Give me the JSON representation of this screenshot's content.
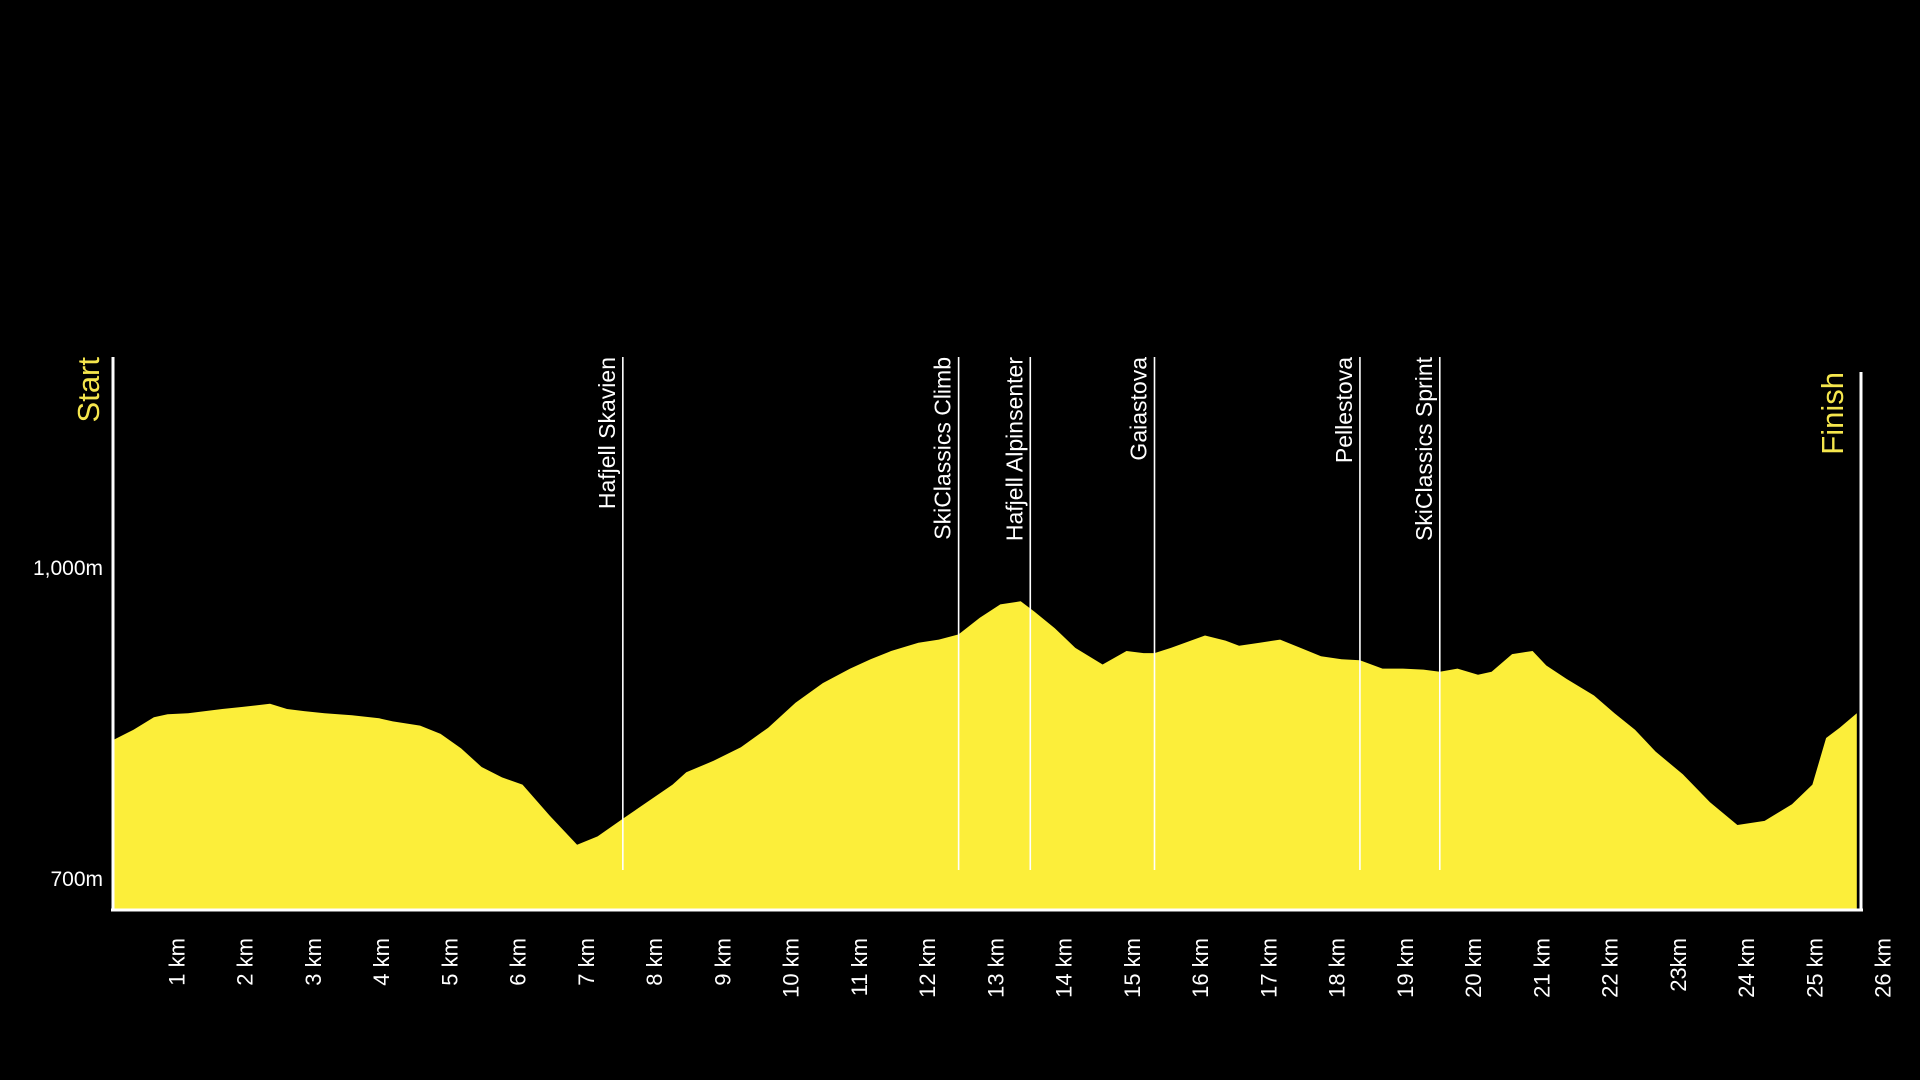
{
  "chart_data": {
    "type": "area",
    "title": "",
    "xlabel": "",
    "ylabel": "",
    "x_unit": "km",
    "xlim": [
      0,
      26
    ],
    "ylim": [
      670,
      1225
    ],
    "grid": false,
    "legend": "none",
    "fill_color": "#fcee3a",
    "axis_color": "#ffffff",
    "background_color": "#000000",
    "start_finish_color": "#f5e64d",
    "y_ticks": [
      {
        "value": 700,
        "label": "700m"
      },
      {
        "value": 1000,
        "label": "1,000m"
      }
    ],
    "x_ticks": [
      {
        "value": 1,
        "label": "1 km"
      },
      {
        "value": 2,
        "label": "2 km"
      },
      {
        "value": 3,
        "label": "3 km"
      },
      {
        "value": 4,
        "label": "4 km"
      },
      {
        "value": 5,
        "label": "5 km"
      },
      {
        "value": 6,
        "label": "6 km"
      },
      {
        "value": 7,
        "label": "7 km"
      },
      {
        "value": 8,
        "label": "8 km"
      },
      {
        "value": 9,
        "label": "9 km"
      },
      {
        "value": 10,
        "label": "10 km"
      },
      {
        "value": 11,
        "label": "11 km"
      },
      {
        "value": 12,
        "label": "12 km"
      },
      {
        "value": 13,
        "label": "13 km"
      },
      {
        "value": 14,
        "label": "14 km"
      },
      {
        "value": 15,
        "label": "15 km"
      },
      {
        "value": 16,
        "label": "16 km"
      },
      {
        "value": 17,
        "label": "17 km"
      },
      {
        "value": 18,
        "label": "18 km"
      },
      {
        "value": 19,
        "label": "19 km"
      },
      {
        "value": 20,
        "label": "20 km"
      },
      {
        "value": 21,
        "label": "21 km"
      },
      {
        "value": 22,
        "label": "22 km"
      },
      {
        "value": 23,
        "label": "23km"
      },
      {
        "value": 24,
        "label": "24 km"
      },
      {
        "value": 25,
        "label": "25 km"
      },
      {
        "value": 26,
        "label": "26 km"
      }
    ],
    "endpoints": [
      {
        "label": "Start",
        "x": 0
      },
      {
        "label": "Finish",
        "x": 25.55
      }
    ],
    "waypoints": [
      {
        "label": "Hafjell Skavien",
        "x": 7.47
      },
      {
        "label": "SkiClassics Climb",
        "x": 12.39
      },
      {
        "label": "Hafjell Alpinsenter",
        "x": 13.44
      },
      {
        "label": "Gaiastova",
        "x": 15.26
      },
      {
        "label": "Pellestova",
        "x": 18.27
      },
      {
        "label": "SkiClassics Sprint",
        "x": 19.44
      }
    ],
    "profile": {
      "x": [
        0.0,
        0.3,
        0.6,
        0.8,
        1.1,
        1.6,
        1.9,
        2.3,
        2.55,
        2.8,
        3.1,
        3.5,
        3.9,
        4.1,
        4.5,
        4.8,
        5.1,
        5.4,
        5.7,
        6.0,
        6.4,
        6.8,
        7.1,
        7.47,
        7.8,
        8.2,
        8.4,
        8.8,
        9.2,
        9.6,
        10.0,
        10.4,
        10.8,
        11.1,
        11.4,
        11.8,
        12.1,
        12.39,
        12.7,
        13.0,
        13.3,
        13.5,
        13.8,
        14.1,
        14.5,
        14.85,
        15.1,
        15.26,
        15.5,
        16.0,
        16.3,
        16.5,
        16.8,
        17.1,
        17.4,
        17.7,
        18.0,
        18.27,
        18.6,
        18.9,
        19.2,
        19.44,
        19.7,
        20.0,
        20.2,
        20.5,
        20.8,
        21.0,
        21.3,
        21.7,
        22.0,
        22.3,
        22.6,
        23.0,
        23.4,
        23.8,
        24.2,
        24.6,
        24.9,
        25.1,
        25.3,
        25.55
      ],
      "y": [
        834,
        844,
        856,
        859,
        860,
        864,
        866,
        869,
        864,
        862,
        860,
        858,
        855,
        852,
        848,
        840,
        826,
        808,
        798,
        791,
        761,
        733,
        741,
        758,
        773,
        791,
        803,
        814,
        827,
        846,
        870,
        889,
        903,
        912,
        920,
        928,
        931,
        936,
        952,
        965,
        968,
        958,
        942,
        923,
        907,
        920,
        918,
        918,
        923,
        935,
        930,
        925,
        928,
        931,
        923,
        915,
        912,
        911,
        903,
        903,
        902,
        900,
        903,
        897,
        900,
        917,
        920,
        906,
        893,
        877,
        860,
        844,
        823,
        801,
        774,
        752,
        756,
        772,
        791,
        836,
        846,
        860
      ]
    }
  }
}
